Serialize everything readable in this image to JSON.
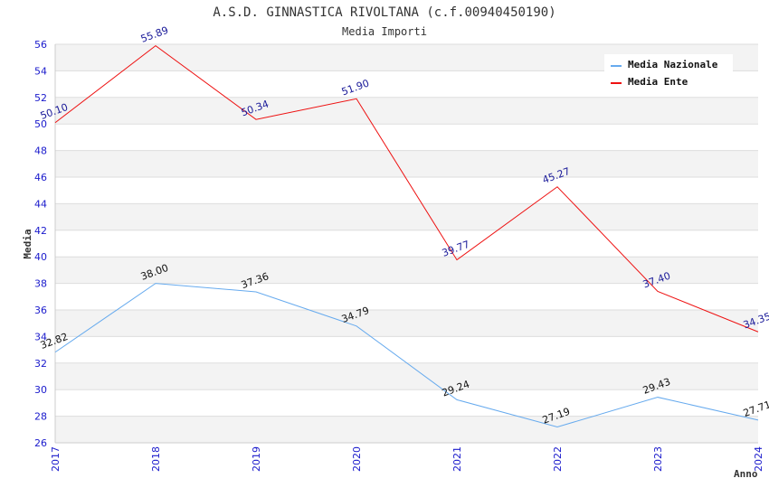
{
  "chart_data": {
    "type": "line",
    "title": "A.S.D. GINNASTICA RIVOLTANA (c.f.00940450190)",
    "subtitle": "Media Importi",
    "xlabel": "Anno",
    "ylabel": "Media",
    "categories": [
      "2017",
      "2018",
      "2019",
      "2020",
      "2021",
      "2022",
      "2023",
      "2024"
    ],
    "ylim": [
      26,
      56
    ],
    "yticks": [
      26,
      28,
      30,
      32,
      34,
      36,
      38,
      40,
      42,
      44,
      46,
      48,
      50,
      52,
      54,
      56
    ],
    "grid": true,
    "legend_position": "top-right",
    "series": [
      {
        "name": "Media Nazionale",
        "color": "#66aaee",
        "label_color": "#111111",
        "values": [
          32.82,
          38.0,
          37.36,
          34.79,
          29.24,
          27.19,
          29.43,
          27.71
        ],
        "labels": [
          "32.82",
          "38.00",
          "37.36",
          "34.79",
          "29.24",
          "27.19",
          "29.43",
          "27.71"
        ]
      },
      {
        "name": "Media Ente",
        "color": "#ee1111",
        "label_color": "#1a1a99",
        "values": [
          50.1,
          55.89,
          50.34,
          51.9,
          39.77,
          45.27,
          37.4,
          34.35
        ],
        "labels": [
          "50.10",
          "55.89",
          "50.34",
          "51.90",
          "39.77",
          "45.27",
          "37.40",
          "34.35"
        ]
      }
    ]
  }
}
